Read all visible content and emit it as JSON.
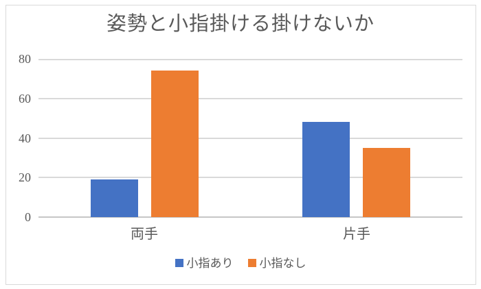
{
  "chart_data": {
    "type": "bar",
    "title": "姿勢と小指掛ける掛けないか",
    "categories": [
      "両手",
      "片手"
    ],
    "series": [
      {
        "name": "小指あり",
        "color": "#4472C4",
        "values": [
          19,
          48
        ]
      },
      {
        "name": "小指なし",
        "color": "#ED7D31",
        "values": [
          74,
          35
        ]
      }
    ],
    "xlabel": "",
    "ylabel": "",
    "ylim": [
      0,
      80
    ],
    "yticks": [
      0,
      20,
      40,
      60,
      80
    ],
    "grid": true,
    "legend_position": "bottom"
  },
  "style": {
    "background": "#FFFFFF",
    "text_color": "#595959",
    "gridline_color": "#D9D9D9",
    "axis_line_color": "#C6C6C6",
    "frame_border_color": "#D9D9D9"
  }
}
